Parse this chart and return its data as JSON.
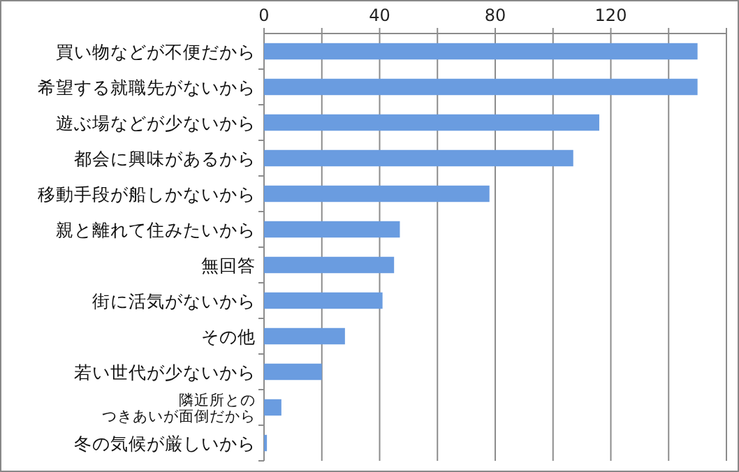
{
  "chart_data": {
    "type": "bar",
    "orientation": "horizontal",
    "categories": [
      "買い物などが不便だから",
      "希望する就職先がないから",
      "遊ぶ場などが少ないから",
      "都会に興味があるから",
      "移動手段が船しかないから",
      "親と離れて住みたいから",
      "無回答",
      "街に活気がないから",
      "その他",
      "若い世代が少ないから",
      "隣近所とのつきあいが面倒だから",
      "冬の気候が厳しいから"
    ],
    "values": [
      150,
      150,
      116,
      107,
      78,
      47,
      45,
      41,
      28,
      20,
      6,
      1
    ],
    "color": "#6a9ce0",
    "xlim": [
      0,
      160
    ],
    "xticks": [
      0,
      {
        "value": 20,
        "label": null
      },
      40,
      {
        "value": 60,
        "label": null
      },
      80,
      {
        "value": 100,
        "label": null
      },
      120,
      {
        "value": 140,
        "label": null
      },
      {
        "value": 160,
        "label": null
      }
    ],
    "grid": "x"
  }
}
